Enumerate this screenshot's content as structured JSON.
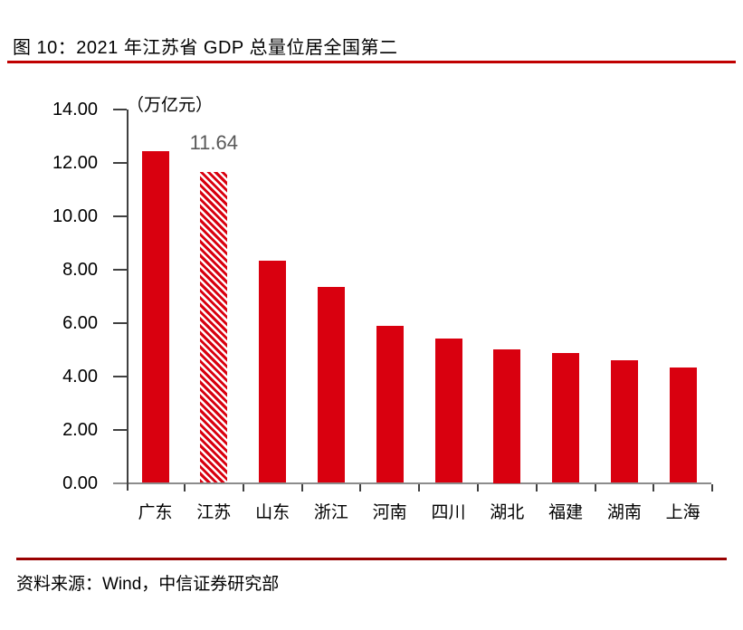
{
  "figure": {
    "title": "图 10：2021 年江苏省 GDP 总量位居全国第二",
    "source": "资料来源：Wind，中信证券研究部"
  },
  "chart_data": {
    "type": "bar",
    "unit_label": "（万亿元）",
    "categories": [
      "广东",
      "江苏",
      "山东",
      "浙江",
      "河南",
      "四川",
      "湖北",
      "福建",
      "湖南",
      "上海"
    ],
    "values": [
      12.44,
      11.64,
      8.31,
      7.35,
      5.89,
      5.39,
      5.0,
      4.88,
      4.6,
      4.32
    ],
    "highlight_index": 1,
    "highlight_value_label": "11.64",
    "ylim": [
      0,
      14
    ],
    "ytick_step": 2,
    "ytick_labels": [
      "0.00",
      "2.00",
      "4.00",
      "6.00",
      "8.00",
      "10.00",
      "12.00",
      "14.00"
    ],
    "grid": false,
    "legend": "none",
    "highlight_style": "diagonal-hatch"
  },
  "colors": {
    "bar": "#D9000F",
    "hatch_bg": "#ffffff",
    "value_label": "#595959",
    "title_rule": "#C00000",
    "footer_rule": "#990000",
    "axis_line": "#8c8c8c",
    "tick": "#404040",
    "text": "#000000"
  }
}
